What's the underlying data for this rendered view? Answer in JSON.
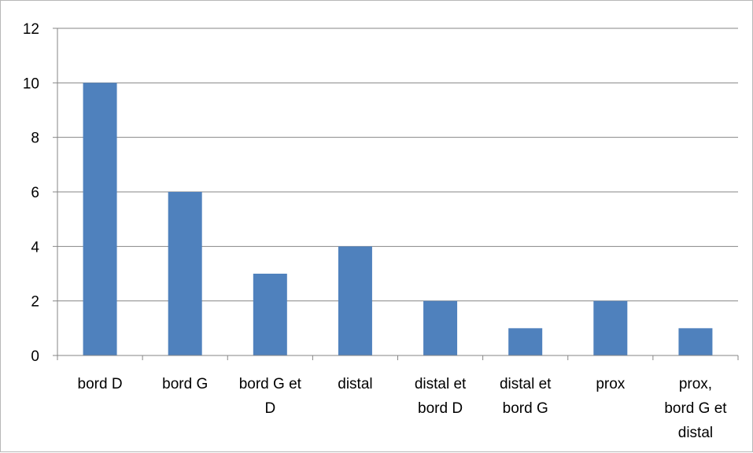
{
  "chart_data": {
    "type": "bar",
    "categories": [
      [
        "bord D"
      ],
      [
        "bord G"
      ],
      [
        "bord G et",
        "D"
      ],
      [
        "distal"
      ],
      [
        "distal et",
        "bord D"
      ],
      [
        "distal et",
        "bord G"
      ],
      [
        "prox"
      ],
      [
        "prox,",
        "bord G et",
        "distal"
      ]
    ],
    "values": [
      10,
      6,
      3,
      4,
      2,
      1,
      2,
      1
    ],
    "ylim": [
      0,
      12
    ],
    "yticks": [
      "0",
      "2",
      "4",
      "6",
      "8",
      "10",
      "12"
    ],
    "title": "",
    "xlabel": "",
    "ylabel": "",
    "grid": true,
    "legend": "none",
    "bar_color": "#4f81bd",
    "grid_color": "#868686"
  }
}
